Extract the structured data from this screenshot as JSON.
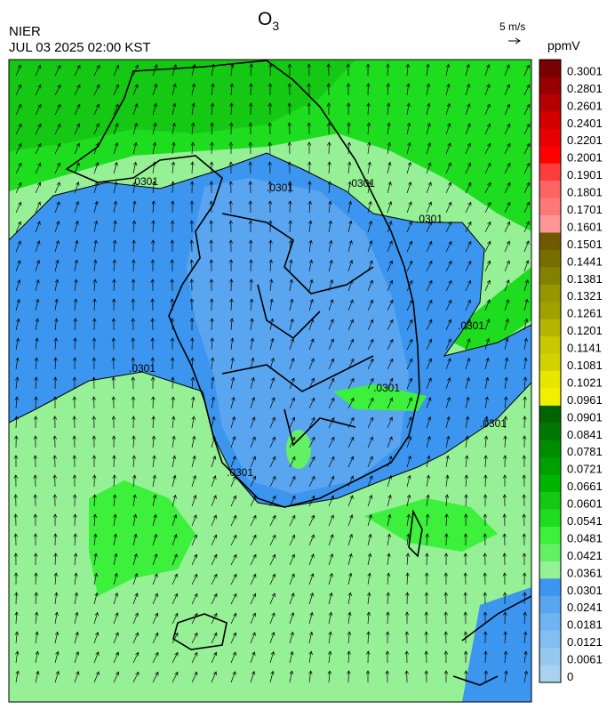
{
  "header": {
    "source": "NIER",
    "timestamp": "JUL 03 2025 02:00 KST",
    "title": "O",
    "title_subscript": "3",
    "wind_scale": "5 m/s",
    "unit": "ppmV"
  },
  "colorbar": {
    "labels": [
      "0.3001",
      "0.2801",
      "0.2601",
      "0.2401",
      "0.2201",
      "0.2001",
      "0.1901",
      "0.1801",
      "0.1701",
      "0.1601",
      "0.1501",
      "0.1441",
      "0.1381",
      "0.1321",
      "0.1261",
      "0.1201",
      "0.1141",
      "0.1081",
      "0.1021",
      "0.0961",
      "0.0901",
      "0.0841",
      "0.0781",
      "0.0721",
      "0.0661",
      "0.0601",
      "0.0541",
      "0.0481",
      "0.0421",
      "0.0361",
      "0.0301",
      "0.0241",
      "0.0181",
      "0.0121",
      "0.0061",
      "0"
    ],
    "colors": [
      "#780000",
      "#960000",
      "#b40000",
      "#d20000",
      "#e60000",
      "#ff0000",
      "#ff3c3c",
      "#ff6464",
      "#ff7878",
      "#ff9696",
      "#6e5a00",
      "#786e00",
      "#828200",
      "#969600",
      "#a0a000",
      "#b4b400",
      "#c8c800",
      "#d2d200",
      "#e6e600",
      "#f0f000",
      "#006400",
      "#007800",
      "#008c00",
      "#00a000",
      "#00b400",
      "#14c814",
      "#1edc1e",
      "#3cf03c",
      "#64f064",
      "#96f096",
      "#3c96f0",
      "#5aa5f0",
      "#6eb4f0",
      "#82bef0",
      "#96c8f0",
      "#aad2ee"
    ]
  },
  "contour_labels": [
    ".0301",
    ".0301",
    ".0301",
    ".0301",
    ".0301",
    ".0301",
    ".0301",
    ".0301",
    ".0301"
  ]
}
